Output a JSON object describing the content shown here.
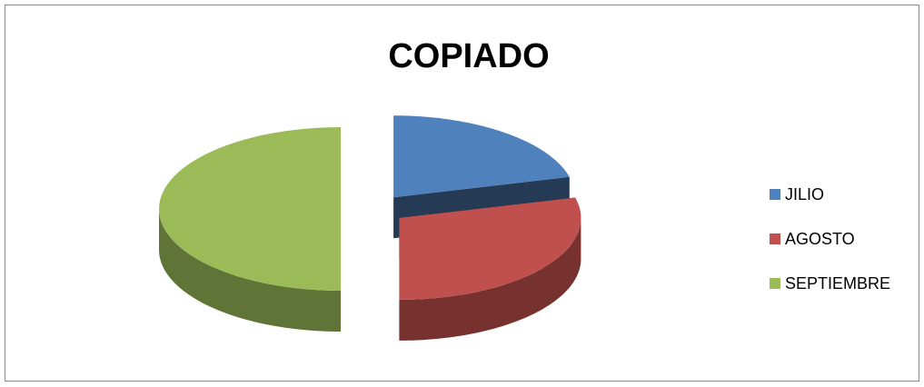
{
  "chart_data": {
    "type": "pie",
    "title": "COPIADO",
    "categories": [
      "JILIO",
      "AGOSTO",
      "SEPTIEMBRE"
    ],
    "values": [
      21,
      29,
      50
    ],
    "colors": [
      "#4f81bd",
      "#c0504d",
      "#9bbb59"
    ],
    "legend": "right"
  }
}
